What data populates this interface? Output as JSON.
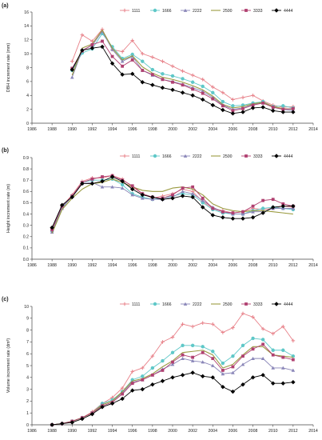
{
  "chart_data": [
    {
      "type": "line",
      "panel_label": "(a)",
      "ylabel": "DBH increment rate (mm)",
      "xlabel": "",
      "xlim": [
        1986,
        2014
      ],
      "ylim": [
        0,
        16
      ],
      "xticks": [
        1986,
        1988,
        1990,
        1992,
        1994,
        1996,
        1998,
        2000,
        2002,
        2004,
        2006,
        2008,
        2010,
        2012,
        2014
      ],
      "yticks": [
        0,
        2,
        4,
        6,
        8,
        10,
        12,
        14,
        16
      ],
      "x": [
        1990,
        1991,
        1992,
        1993,
        1994,
        1995,
        1996,
        1997,
        1998,
        1999,
        2000,
        2001,
        2002,
        2003,
        2004,
        2005,
        2006,
        2007,
        2008,
        2009,
        2010,
        2011,
        2012
      ],
      "series": [
        {
          "name": "1111",
          "color": "#e8828a",
          "marker": "plus",
          "values": [
            8.9,
            12.7,
            11.8,
            13.5,
            10.6,
            10.3,
            11.9,
            10.0,
            9.5,
            8.9,
            8.2,
            7.5,
            6.9,
            6.3,
            5.2,
            4.4,
            3.4,
            3.7,
            4.0,
            3.2,
            2.6,
            2.3,
            2.4
          ]
        },
        {
          "name": "1666",
          "color": "#5fc8c8",
          "marker": "circle",
          "values": [
            7.6,
            10.1,
            10.7,
            12.9,
            11.0,
            9.3,
            9.9,
            8.9,
            7.7,
            7.1,
            6.8,
            6.4,
            5.9,
            5.3,
            4.4,
            3.1,
            2.5,
            2.6,
            2.9,
            3.1,
            2.4,
            2.5,
            2.2
          ]
        },
        {
          "name": "2222",
          "color": "#8a86b8",
          "marker": "triangle",
          "values": [
            6.6,
            10.5,
            11.2,
            13.2,
            10.6,
            8.9,
            9.6,
            7.6,
            6.9,
            6.3,
            6.0,
            5.6,
            5.1,
            4.6,
            3.7,
            2.6,
            2.0,
            2.2,
            2.7,
            2.9,
            2.3,
            2.0,
            1.8
          ]
        },
        {
          "name": "2500",
          "color": "#9a9a40",
          "marker": "none",
          "values": [
            6.9,
            10.8,
            11.4,
            13.4,
            10.8,
            9.1,
            9.7,
            8.1,
            7.2,
            6.6,
            6.3,
            5.9,
            5.4,
            4.8,
            3.9,
            2.7,
            2.2,
            2.4,
            2.8,
            3.0,
            2.4,
            2.1,
            2.0
          ]
        },
        {
          "name": "3333",
          "color": "#b04070",
          "marker": "square",
          "values": [
            7.9,
            10.4,
            11.3,
            11.8,
            9.6,
            8.2,
            9.1,
            7.6,
            7.0,
            6.3,
            5.9,
            5.5,
            4.9,
            4.3,
            3.5,
            2.5,
            1.8,
            2.1,
            2.6,
            2.9,
            2.3,
            2.0,
            2.1
          ]
        },
        {
          "name": "4444",
          "color": "#000000",
          "marker": "diamond",
          "values": [
            7.7,
            10.5,
            10.8,
            11.0,
            8.6,
            7.0,
            7.1,
            5.9,
            5.5,
            5.1,
            4.8,
            4.4,
            4.0,
            3.4,
            2.6,
            1.9,
            1.4,
            1.6,
            2.2,
            2.3,
            1.8,
            1.6,
            1.6
          ]
        }
      ]
    },
    {
      "type": "line",
      "panel_label": "(b)",
      "ylabel": "Height increment rate (m)",
      "xlabel": "",
      "xlim": [
        1986,
        2014
      ],
      "ylim": [
        0,
        0.9
      ],
      "xticks": [
        1986,
        1988,
        1990,
        1992,
        1994,
        1996,
        1998,
        2000,
        2002,
        2004,
        2006,
        2008,
        2010,
        2012,
        2014
      ],
      "yticks": [
        0,
        0.1,
        0.2,
        0.3,
        0.4,
        0.5,
        0.6,
        0.7,
        0.8,
        0.9
      ],
      "ytick_labels": [
        "0.0",
        "0.1",
        "0.2",
        "0.3",
        "0.4",
        "0.5",
        "0.6",
        "0.7",
        "0.8",
        "0.9"
      ],
      "x": [
        1988,
        1989,
        1990,
        1991,
        1992,
        1993,
        1994,
        1995,
        1996,
        1997,
        1998,
        1999,
        2000,
        2001,
        2002,
        2003,
        2004,
        2005,
        2006,
        2007,
        2008,
        2009,
        2010,
        2011,
        2012
      ],
      "series": [
        {
          "name": "1111",
          "color": "#e8828a",
          "marker": "plus",
          "values": [
            0.27,
            0.47,
            0.57,
            0.69,
            0.72,
            0.72,
            0.74,
            0.71,
            0.64,
            0.58,
            0.54,
            0.56,
            0.58,
            0.62,
            0.6,
            0.51,
            0.45,
            0.43,
            0.41,
            0.42,
            0.45,
            0.44,
            0.45,
            0.47,
            0.46
          ]
        },
        {
          "name": "1666",
          "color": "#5fc8c8",
          "marker": "circle",
          "values": [
            0.25,
            0.46,
            0.56,
            0.68,
            0.7,
            0.7,
            0.71,
            0.66,
            0.58,
            0.55,
            0.53,
            0.54,
            0.56,
            0.58,
            0.57,
            0.5,
            0.44,
            0.41,
            0.4,
            0.4,
            0.43,
            0.45,
            0.46,
            0.45,
            0.44
          ]
        },
        {
          "name": "2222",
          "color": "#8a86b8",
          "marker": "triangle",
          "values": [
            0.24,
            0.45,
            0.56,
            0.67,
            0.68,
            0.64,
            0.64,
            0.63,
            0.57,
            0.54,
            0.53,
            0.53,
            0.55,
            0.6,
            0.58,
            0.52,
            0.46,
            0.42,
            0.4,
            0.4,
            0.42,
            0.42,
            0.45,
            0.45,
            0.45
          ]
        },
        {
          "name": "2500",
          "color": "#9a9a40",
          "marker": "none",
          "values": [
            0.23,
            0.44,
            0.54,
            0.62,
            0.67,
            0.68,
            0.71,
            0.68,
            0.64,
            0.61,
            0.6,
            0.6,
            0.63,
            0.64,
            0.62,
            0.57,
            0.49,
            0.45,
            0.43,
            0.42,
            0.43,
            0.43,
            0.42,
            0.41,
            0.4
          ]
        },
        {
          "name": "3333",
          "color": "#b04070",
          "marker": "square",
          "values": [
            0.26,
            0.47,
            0.56,
            0.68,
            0.71,
            0.73,
            0.74,
            0.7,
            0.65,
            0.58,
            0.55,
            0.54,
            0.57,
            0.63,
            0.64,
            0.54,
            0.45,
            0.42,
            0.41,
            0.42,
            0.47,
            0.52,
            0.53,
            0.49,
            0.47
          ]
        },
        {
          "name": "4444",
          "color": "#000000",
          "marker": "diamond",
          "values": [
            0.28,
            0.48,
            0.55,
            0.67,
            0.67,
            0.69,
            0.73,
            0.69,
            0.62,
            0.57,
            0.55,
            0.53,
            0.54,
            0.56,
            0.55,
            0.46,
            0.39,
            0.37,
            0.36,
            0.36,
            0.37,
            0.41,
            0.46,
            0.47,
            0.47
          ]
        }
      ]
    },
    {
      "type": "line",
      "panel_label": "(c)",
      "ylabel": "Volume increment rate (dm³)",
      "xlabel": "",
      "xlim": [
        1986,
        2014
      ],
      "ylim": [
        0,
        10
      ],
      "xticks": [
        1986,
        1988,
        1990,
        1992,
        1994,
        1996,
        1998,
        2000,
        2002,
        2004,
        2006,
        2008,
        2010,
        2012,
        2014
      ],
      "yticks": [
        0,
        1,
        2,
        3,
        4,
        5,
        6,
        7,
        8,
        9,
        10
      ],
      "x": [
        1988,
        1989,
        1990,
        1991,
        1992,
        1993,
        1994,
        1995,
        1996,
        1997,
        1998,
        1999,
        2000,
        2001,
        2002,
        2003,
        2004,
        2005,
        2006,
        2007,
        2008,
        2009,
        2010,
        2011,
        2012
      ],
      "series": [
        {
          "name": "1111",
          "color": "#e8828a",
          "marker": "plus",
          "values": [
            0.0,
            0.1,
            0.3,
            0.6,
            1.1,
            1.8,
            2.3,
            3.1,
            4.5,
            4.8,
            5.8,
            7.0,
            7.4,
            8.5,
            8.3,
            8.6,
            8.5,
            7.8,
            8.2,
            9.4,
            9.1,
            8.1,
            7.7,
            8.3,
            7.1
          ]
        },
        {
          "name": "1666",
          "color": "#5fc8c8",
          "marker": "circle",
          "values": [
            0.0,
            0.1,
            0.3,
            0.6,
            1.0,
            1.8,
            2.1,
            2.8,
            3.8,
            4.1,
            4.8,
            5.4,
            6.1,
            6.7,
            6.7,
            6.6,
            6.2,
            5.2,
            5.8,
            6.7,
            7.3,
            7.2,
            6.3,
            6.3,
            5.8
          ]
        },
        {
          "name": "2222",
          "color": "#8a86b8",
          "marker": "triangle",
          "values": [
            0.0,
            0.1,
            0.3,
            0.6,
            1.0,
            1.7,
            2.0,
            2.7,
            3.6,
            3.8,
            4.2,
            4.7,
            5.1,
            5.6,
            5.4,
            5.3,
            5.0,
            4.3,
            4.4,
            5.1,
            5.6,
            5.6,
            4.8,
            4.8,
            4.6
          ]
        },
        {
          "name": "2500",
          "color": "#9a9a40",
          "marker": "none",
          "values": [
            0.0,
            0.1,
            0.3,
            0.6,
            1.0,
            1.7,
            2.0,
            2.8,
            3.7,
            3.9,
            4.3,
            4.9,
            5.4,
            6.1,
            6.2,
            6.3,
            5.9,
            4.8,
            5.1,
            5.9,
            6.6,
            6.6,
            5.9,
            5.8,
            5.7
          ]
        },
        {
          "name": "3333",
          "color": "#b04070",
          "marker": "square",
          "values": [
            0.0,
            0.1,
            0.3,
            0.6,
            1.0,
            1.6,
            1.9,
            2.6,
            3.5,
            3.8,
            4.2,
            4.6,
            5.3,
            5.9,
            5.7,
            6.1,
            5.6,
            4.6,
            4.9,
            5.8,
            6.4,
            6.8,
            5.9,
            5.7,
            5.5
          ]
        },
        {
          "name": "4444",
          "color": "#000000",
          "marker": "diamond",
          "values": [
            0.0,
            0.1,
            0.2,
            0.5,
            0.9,
            1.5,
            1.8,
            2.2,
            2.9,
            3.0,
            3.4,
            3.7,
            4.0,
            4.2,
            4.4,
            4.1,
            4.0,
            3.2,
            2.8,
            3.4,
            4.0,
            4.2,
            3.5,
            3.5,
            3.6
          ]
        }
      ]
    }
  ]
}
